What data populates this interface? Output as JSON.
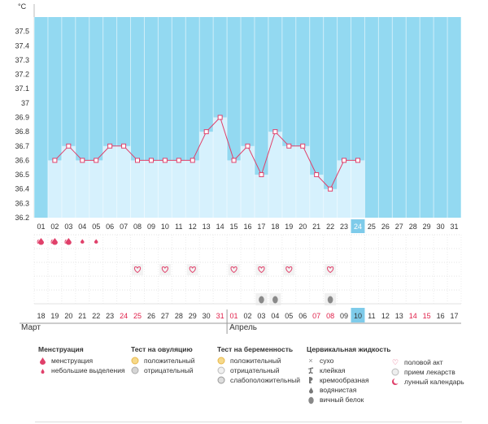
{
  "chart_data": {
    "type": "bar",
    "y_unit": "°C",
    "ylim": [
      36.2,
      37.6
    ],
    "y_ticks": [
      "36.2",
      "36.3",
      "36.4",
      "36.5",
      "36.6",
      "36.7",
      "36.8",
      "36.9",
      "37",
      "37.1",
      "37.2",
      "37.3",
      "37.4",
      "37.5"
    ],
    "cycle_days": [
      "01",
      "02",
      "03",
      "04",
      "05",
      "06",
      "07",
      "08",
      "09",
      "10",
      "11",
      "12",
      "13",
      "14",
      "15",
      "16",
      "17",
      "18",
      "19",
      "20",
      "21",
      "22",
      "23",
      "24",
      "25",
      "26",
      "27",
      "28",
      "29",
      "30",
      "31"
    ],
    "values": [
      null,
      36.6,
      36.7,
      36.6,
      36.6,
      36.7,
      36.7,
      36.6,
      36.6,
      36.6,
      36.6,
      36.6,
      36.8,
      36.9,
      36.6,
      36.7,
      36.5,
      36.8,
      36.7,
      36.7,
      36.5,
      36.4,
      36.6,
      36.6,
      null,
      null,
      null,
      null,
      null,
      null,
      null
    ],
    "selected_day": "24",
    "dates": [
      "18",
      "19",
      "20",
      "21",
      "22",
      "23",
      "24",
      "25",
      "26",
      "27",
      "28",
      "29",
      "30",
      "31",
      "01",
      "02",
      "03",
      "04",
      "05",
      "06",
      "07",
      "08",
      "09",
      "10",
      "11",
      "12",
      "13",
      "14",
      "15",
      "16",
      "17"
    ],
    "dates_red": [
      false,
      false,
      false,
      false,
      false,
      false,
      true,
      true,
      false,
      false,
      false,
      false,
      false,
      true,
      true,
      false,
      false,
      false,
      false,
      false,
      true,
      true,
      false,
      false,
      false,
      false,
      false,
      true,
      true,
      false,
      false
    ],
    "selected_date_index": 23,
    "menstruation_days": [
      1,
      2,
      3,
      4,
      5
    ],
    "menstruation_heavy": [
      true,
      true,
      true,
      false,
      false
    ],
    "intercourse_days": [
      8,
      10,
      12,
      15,
      17,
      19,
      22
    ],
    "egg_white_days": [
      17,
      18,
      22
    ],
    "months": [
      {
        "label": "Март",
        "start_index": 0
      },
      {
        "label": "Апрель",
        "start_index": 14
      }
    ]
  },
  "colors": {
    "plot_bg": "#93d9f1",
    "bar_fill": "#d6f1fd",
    "line": "#e0406a",
    "selected_bg": "#7ecbea",
    "red_text": "#e0204a"
  },
  "legend": {
    "menstruation": {
      "title": "Менструация",
      "items": [
        "менструация",
        "небольшие выделения"
      ]
    },
    "ovulation": {
      "title": "Тест на овуляцию",
      "items": [
        "положительный",
        "отрицательный"
      ]
    },
    "pregnancy": {
      "title": "Тест на беременность",
      "items": [
        "положительный",
        "отрицательный",
        "слабоположительный"
      ]
    },
    "cervical": {
      "title": "Цервикальная жидкость",
      "items": [
        "сухо",
        "клейкая",
        "кремообразная",
        "водянистая",
        "вичный белок"
      ]
    },
    "other": {
      "items": [
        "половой акт",
        "прием лекарств",
        "лунный календарь"
      ]
    }
  }
}
